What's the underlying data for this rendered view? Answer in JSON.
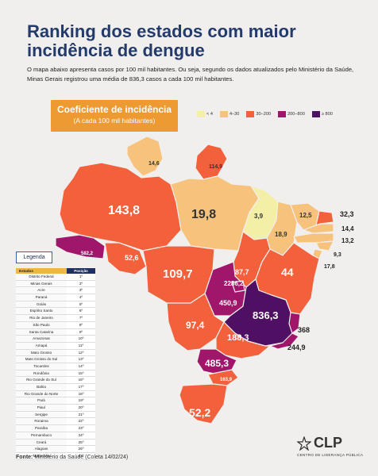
{
  "header": {
    "title": "Ranking dos estados com maior incidência de dengue",
    "subtitle": "O mapa abaixo apresenta casos por 100 mil habitantes. Ou seja, segundo os dados atualizados pelo Ministério da Saúde, Minas Gerais registrou uma média de 836,3 casos a cada 100 mil habitantes."
  },
  "coef": {
    "title": "Coeficiente de incidência",
    "subtitle": "(A cada 100 mil habitantes)"
  },
  "scale": [
    {
      "label": "< 4",
      "color": "#f3efa6"
    },
    {
      "label": "4–30",
      "color": "#f7c27b"
    },
    {
      "label": "30–200",
      "color": "#f2603c"
    },
    {
      "label": "200–800",
      "color": "#a0166a"
    },
    {
      "label": "≥ 800",
      "color": "#4f0f63"
    }
  ],
  "map_values": {
    "rr": "14,6",
    "ap": "114,9",
    "am": "143,8",
    "pa": "19,8",
    "ma": "3,9",
    "ce": "12,5",
    "pi": "18,9",
    "rn": "32,3",
    "pb": "14,4",
    "pe": "13,2",
    "al": "9,3",
    "se": "17,8",
    "ac": "582,2",
    "ro": "52,6",
    "mt": "109,7",
    "to": "87,7",
    "ba": "44",
    "df": "2286,2",
    "go": "450,9",
    "mg": "836,3",
    "es": "368",
    "rj": "244,9",
    "ms": "97,4",
    "sp": "188,3",
    "pr": "485,3",
    "sc": "163,9",
    "rs": "52,2"
  },
  "legend": {
    "label": "Legenda",
    "col_state": "Estados",
    "col_pos": "Posição",
    "rows": [
      {
        "state": "Distrito Federal",
        "pos": "1º"
      },
      {
        "state": "Minas Gerais",
        "pos": "2º"
      },
      {
        "state": "Acre",
        "pos": "3º"
      },
      {
        "state": "Paraná",
        "pos": "4º"
      },
      {
        "state": "Goiás",
        "pos": "5º"
      },
      {
        "state": "Espírito Santo",
        "pos": "6º"
      },
      {
        "state": "Rio de Janeiro",
        "pos": "7º"
      },
      {
        "state": "São Paulo",
        "pos": "8º"
      },
      {
        "state": "Santa Catarina",
        "pos": "9º"
      },
      {
        "state": "Amazonas",
        "pos": "10º"
      },
      {
        "state": "Amapá",
        "pos": "11º"
      },
      {
        "state": "Mato Grosso",
        "pos": "12º"
      },
      {
        "state": "Mato Grosso do Sul",
        "pos": "13º"
      },
      {
        "state": "Tocantins",
        "pos": "14º"
      },
      {
        "state": "Rondônia",
        "pos": "15º"
      },
      {
        "state": "Rio Grande do Sul",
        "pos": "16º"
      },
      {
        "state": "Bahia",
        "pos": "17º"
      },
      {
        "state": "Rio Grande do Norte",
        "pos": "18º"
      },
      {
        "state": "Pará",
        "pos": "19º"
      },
      {
        "state": "Piauí",
        "pos": "20º"
      },
      {
        "state": "Sergipe",
        "pos": "21º"
      },
      {
        "state": "Roraima",
        "pos": "22º"
      },
      {
        "state": "Paraíba",
        "pos": "23º"
      },
      {
        "state": "Pernambuco",
        "pos": "24º"
      },
      {
        "state": "Ceará",
        "pos": "25º"
      },
      {
        "state": "Alagoas",
        "pos": "26º"
      },
      {
        "state": "Maranhão",
        "pos": "27º"
      }
    ]
  },
  "source": {
    "label": "Fonte:",
    "text": "Ministério da Saúde",
    "date": "(Coleta 14/02/24)"
  },
  "brand": {
    "name": "CLP",
    "full": "CENTRO DE LIDERANÇA PÚBLICA"
  }
}
